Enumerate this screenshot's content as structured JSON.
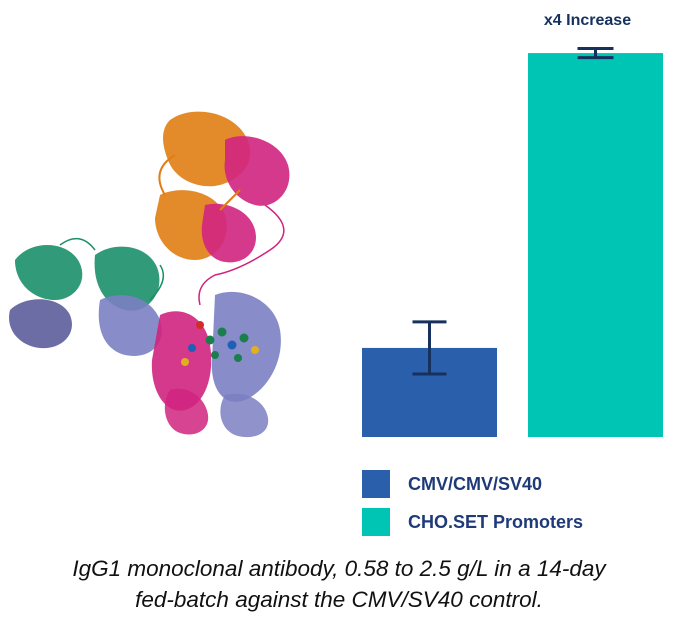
{
  "chart_data": {
    "type": "bar",
    "categories": [
      "CMV/CMV/SV40",
      "CHO.SET Promoters"
    ],
    "values": [
      0.58,
      2.5
    ],
    "error": [
      0.17,
      0.03
    ],
    "colors": [
      "#2a5fab",
      "#00c5b5"
    ],
    "ylim": [
      0,
      2.52
    ],
    "annotation": "x4 Increase",
    "legend": [
      {
        "label": "CMV/CMV/SV40",
        "color": "#2a5fab"
      },
      {
        "label": "CHO.SET Promoters",
        "color": "#00c5b5"
      }
    ]
  },
  "caption": {
    "line1": "IgG1 monoclonal antibody, 0.58 to 2.5 g/L in a 14-day",
    "line2": "fed-batch against the CMV/SV40 control."
  }
}
